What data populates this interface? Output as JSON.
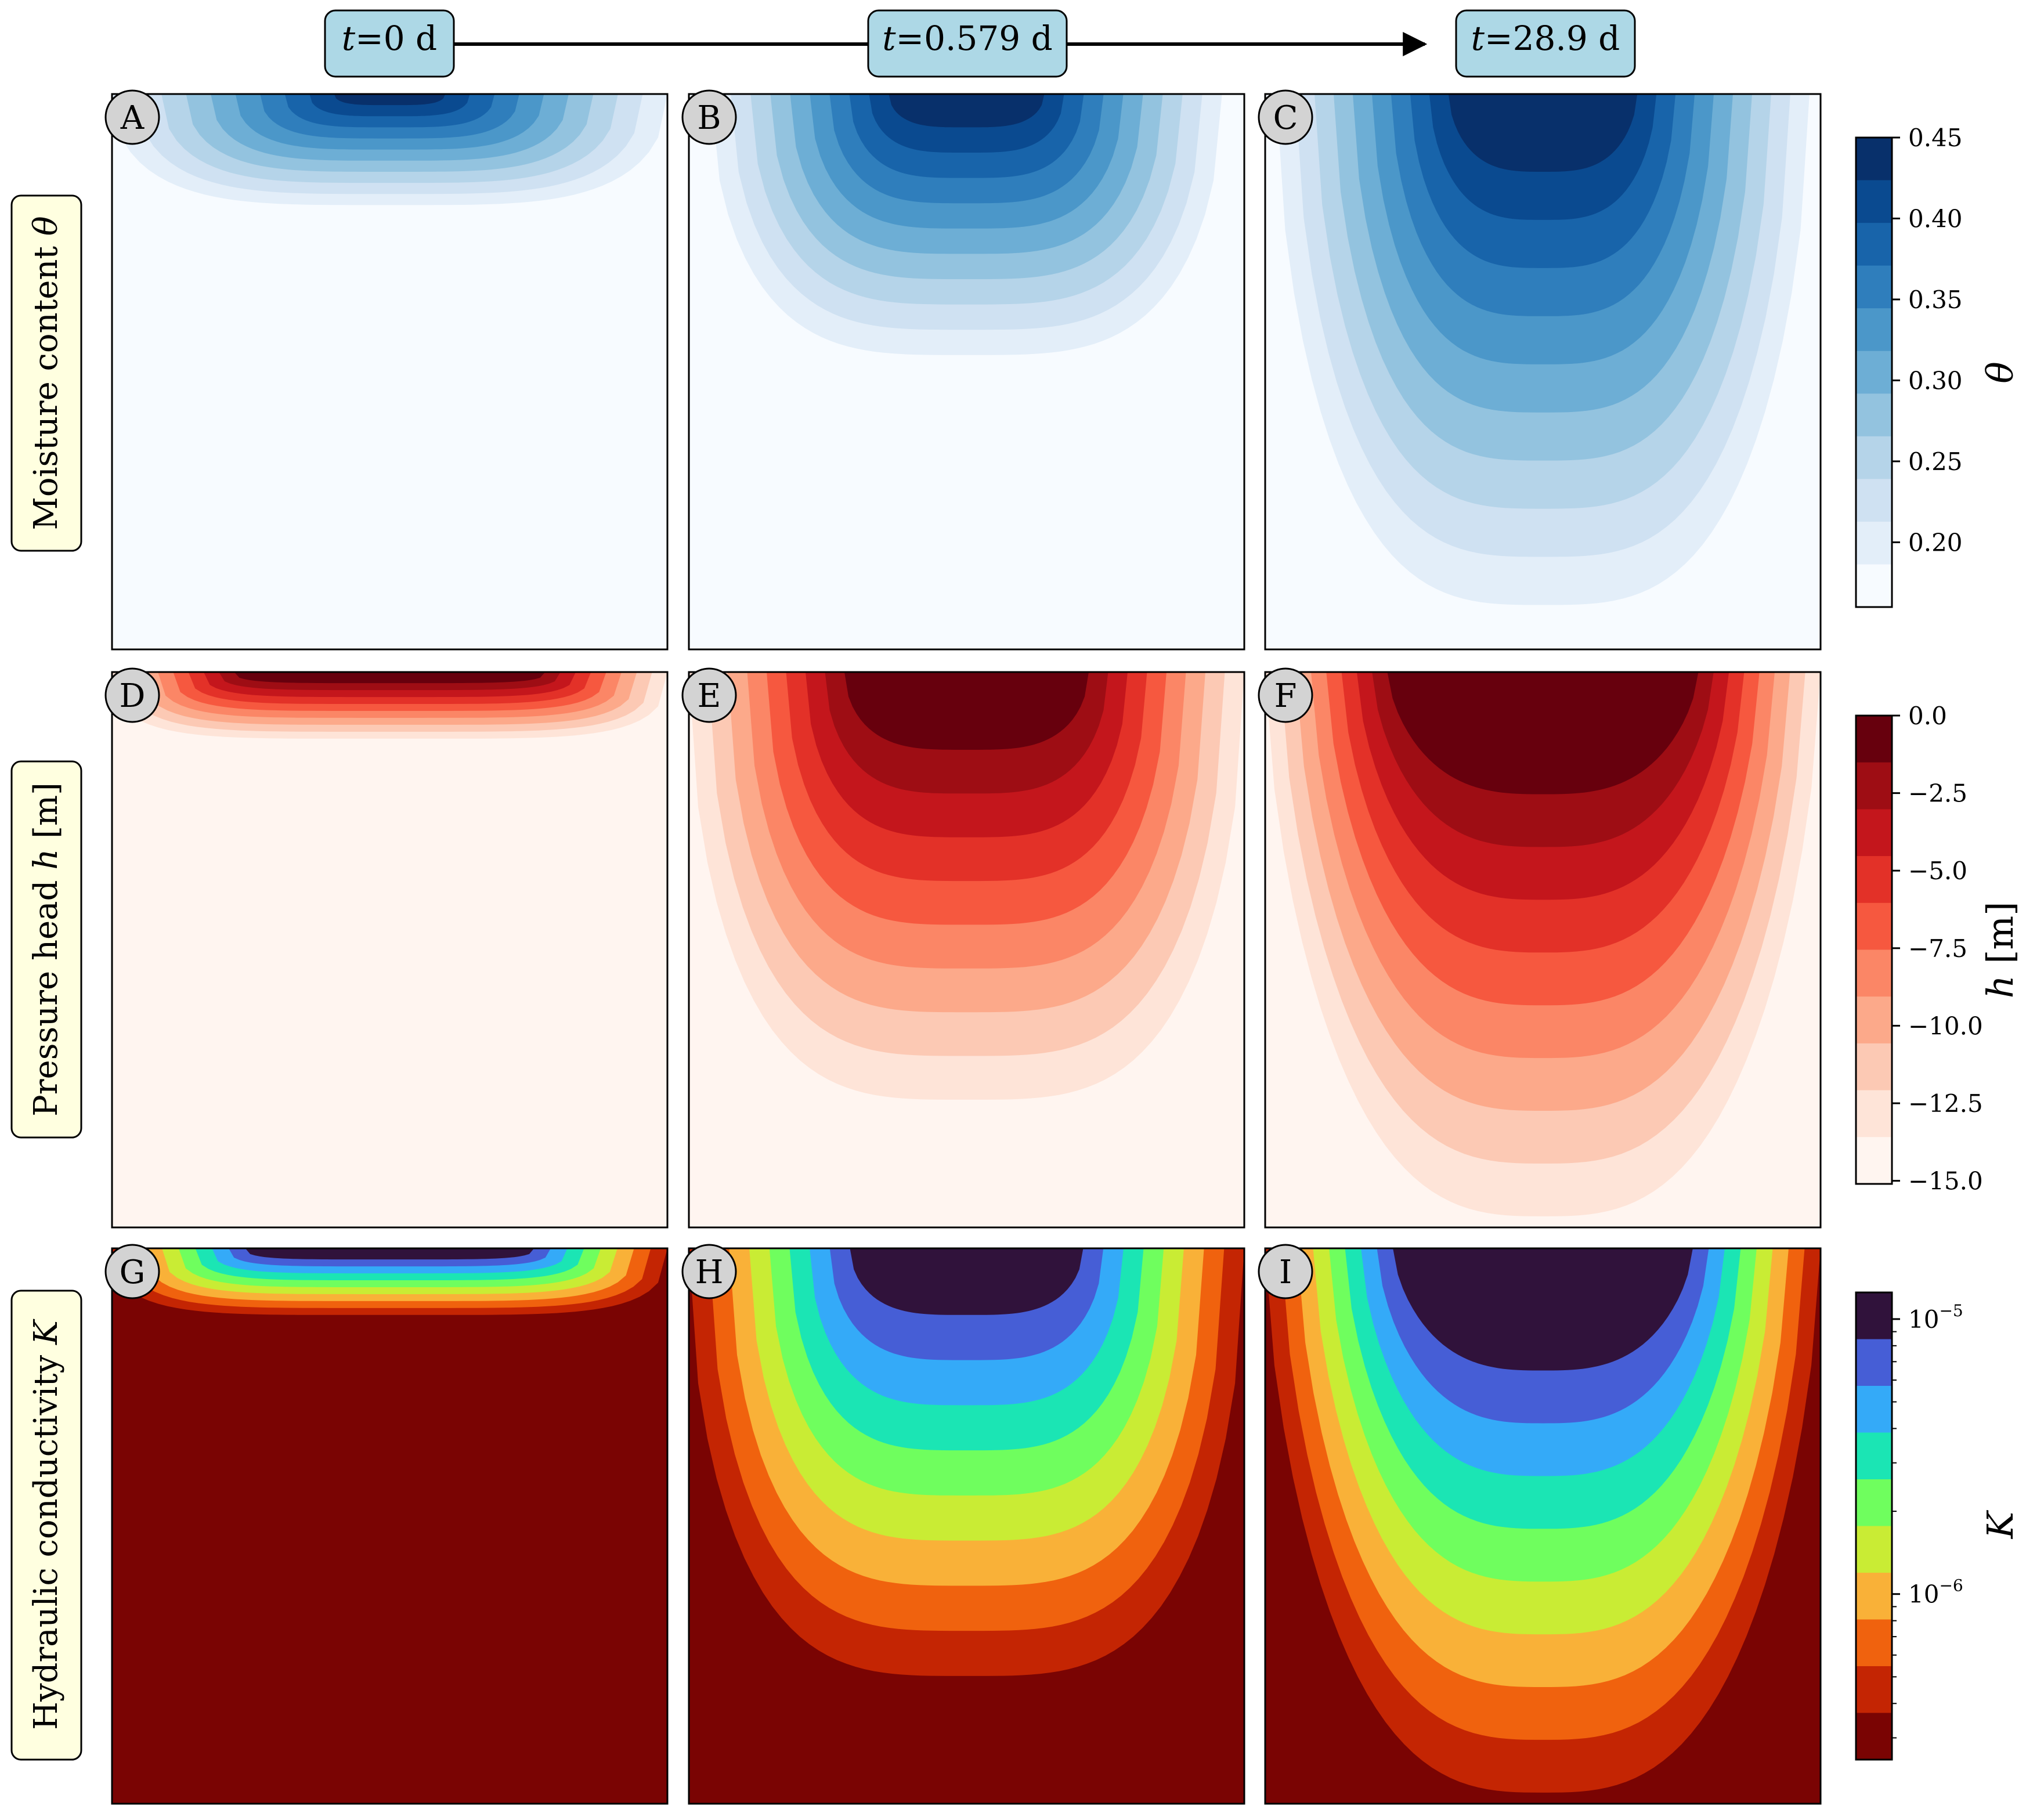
{
  "header": {
    "times": [
      {
        "var": "t",
        "eq": "=",
        "val": "0 d"
      },
      {
        "var": "t",
        "eq": "=",
        "val": "0.579 d"
      },
      {
        "var": "t",
        "eq": "=",
        "val": "28.9 d"
      }
    ]
  },
  "rows": [
    {
      "label_text": "Moisture content",
      "label_var": "θ",
      "label_unit": ""
    },
    {
      "label_text": "Pressure head",
      "label_var": "h",
      "label_unit": " [m]"
    },
    {
      "label_text": "Hydraulic conductivity",
      "label_var": "K",
      "label_unit": ""
    }
  ],
  "panel_letters": [
    "A",
    "B",
    "C",
    "D",
    "E",
    "F",
    "G",
    "H",
    "I"
  ],
  "colorbars": [
    {
      "var": "θ",
      "unit": "",
      "ticks": [
        "0.45",
        "0.40",
        "0.35",
        "0.30",
        "0.25",
        "0.20"
      ],
      "tick_values": [
        0.45,
        0.4,
        0.35,
        0.3,
        0.25,
        0.2
      ],
      "range": [
        0.16,
        0.45
      ]
    },
    {
      "var": "h",
      "unit": " [m]",
      "ticks": [
        "0.0",
        "−2.5",
        "−5.0",
        "−7.5",
        "−10.0",
        "−12.5",
        "−15.0"
      ],
      "tick_values": [
        0,
        -2.5,
        -5,
        -7.5,
        -10,
        -12.5,
        -15
      ],
      "range": [
        -15.1,
        0
      ]
    },
    {
      "var": "K",
      "unit": "",
      "ticks": [
        {
          "base": "10",
          "exp": "−5"
        },
        {
          "base": "10",
          "exp": "−6"
        }
      ],
      "tick_values": [
        1e-05,
        1e-06
      ],
      "range": [
        2.5e-07,
        1.25e-05
      ],
      "scale": "log"
    }
  ],
  "colors": {
    "theta": [
      "#f7fbff",
      "#e3eef9",
      "#cfe1f2",
      "#b5d4e9",
      "#93c3df",
      "#6daed5",
      "#4b97c9",
      "#2f7ebc",
      "#1864aa",
      "#0a4a90",
      "#08306b"
    ],
    "h": [
      "#fff5f0",
      "#fee4d8",
      "#fcc9b4",
      "#fca98a",
      "#fb8666",
      "#f6583f",
      "#e33128",
      "#c4161c",
      "#9e0d14",
      "#67000d"
    ],
    "K": [
      "#7a0403",
      "#c42503",
      "#f0620e",
      "#f9b138",
      "#c9ec34",
      "#6ffe5e",
      "#1be5b4",
      "#34aaf8",
      "#465ed6",
      "#30123b"
    ],
    "header_box": "#add8e6",
    "row_label_box": "#ffffe0",
    "letter_circle": "#d3d3d3"
  },
  "chart_data": [
    {
      "panel": "A",
      "type": "heatmap",
      "variable": "theta",
      "time_d": 0,
      "min": 0.16,
      "max": 0.45,
      "front_depth_fraction": 0.2
    },
    {
      "panel": "B",
      "type": "heatmap",
      "variable": "theta",
      "time_d": 0.579,
      "min": 0.16,
      "max": 0.44,
      "front_depth_fraction": 0.47
    },
    {
      "panel": "C",
      "type": "heatmap",
      "variable": "theta",
      "time_d": 28.9,
      "min": 0.16,
      "max": 0.45,
      "front_depth_fraction": 0.92
    },
    {
      "panel": "D",
      "type": "heatmap",
      "variable": "h",
      "time_d": 0,
      "min": -15.0,
      "max": 0.0,
      "front_depth_fraction": 0.12
    },
    {
      "panel": "E",
      "type": "heatmap",
      "variable": "h",
      "time_d": 0.579,
      "min": -15.0,
      "max": 0.0,
      "front_depth_fraction": 0.77
    },
    {
      "panel": "F",
      "type": "heatmap",
      "variable": "h",
      "time_d": 28.9,
      "min": -14.7,
      "max": 0.0,
      "front_depth_fraction": 0.98
    },
    {
      "panel": "G",
      "type": "heatmap",
      "variable": "K",
      "time_d": 0,
      "min": 2.5e-07,
      "max": 1.25e-05,
      "front_depth_fraction": 0.12
    },
    {
      "panel": "H",
      "type": "heatmap",
      "variable": "K",
      "time_d": 0.579,
      "min": 2.5e-07,
      "max": 1.25e-05,
      "front_depth_fraction": 0.77
    },
    {
      "panel": "I",
      "type": "heatmap",
      "variable": "K",
      "time_d": 28.9,
      "min": 2.5e-07,
      "max": 1.25e-05,
      "front_depth_fraction": 0.98
    }
  ]
}
